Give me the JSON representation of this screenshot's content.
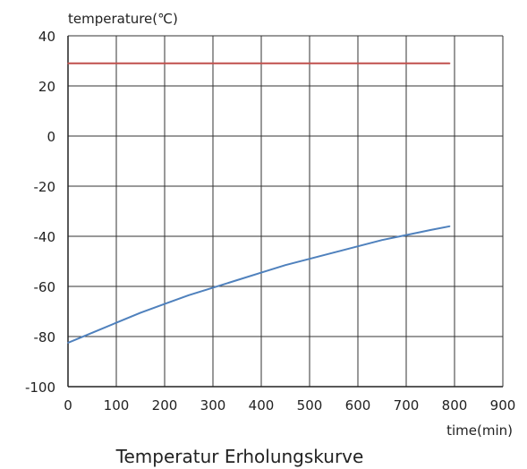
{
  "chart_data": {
    "type": "line",
    "title": "Temperatur Erholungskurve",
    "xlabel": "time(min)",
    "ylabel": "temperature(℃)",
    "xlim": [
      0,
      900
    ],
    "ylim": [
      -100,
      40
    ],
    "xticks": [
      0,
      100,
      200,
      300,
      400,
      500,
      600,
      700,
      800,
      900
    ],
    "yticks": [
      40,
      20,
      0,
      -20,
      -40,
      -60,
      -80,
      -100
    ],
    "grid": true,
    "legend": "none",
    "series": [
      {
        "color": "#c0504d",
        "x": [
          0,
          100,
          200,
          300,
          400,
          500,
          600,
          700,
          790
        ],
        "values": [
          29,
          29,
          29,
          29,
          29,
          29,
          29,
          29,
          29
        ]
      },
      {
        "color": "#4f81bd",
        "x": [
          0,
          50,
          100,
          150,
          200,
          250,
          300,
          350,
          400,
          450,
          500,
          550,
          600,
          650,
          700,
          750,
          790
        ],
        "values": [
          -82.5,
          -78.5,
          -74.5,
          -70.5,
          -67,
          -63.5,
          -60.5,
          -57.5,
          -54.5,
          -51.5,
          -49,
          -46.5,
          -44,
          -41.5,
          -39.5,
          -37.5,
          -36
        ]
      }
    ]
  }
}
